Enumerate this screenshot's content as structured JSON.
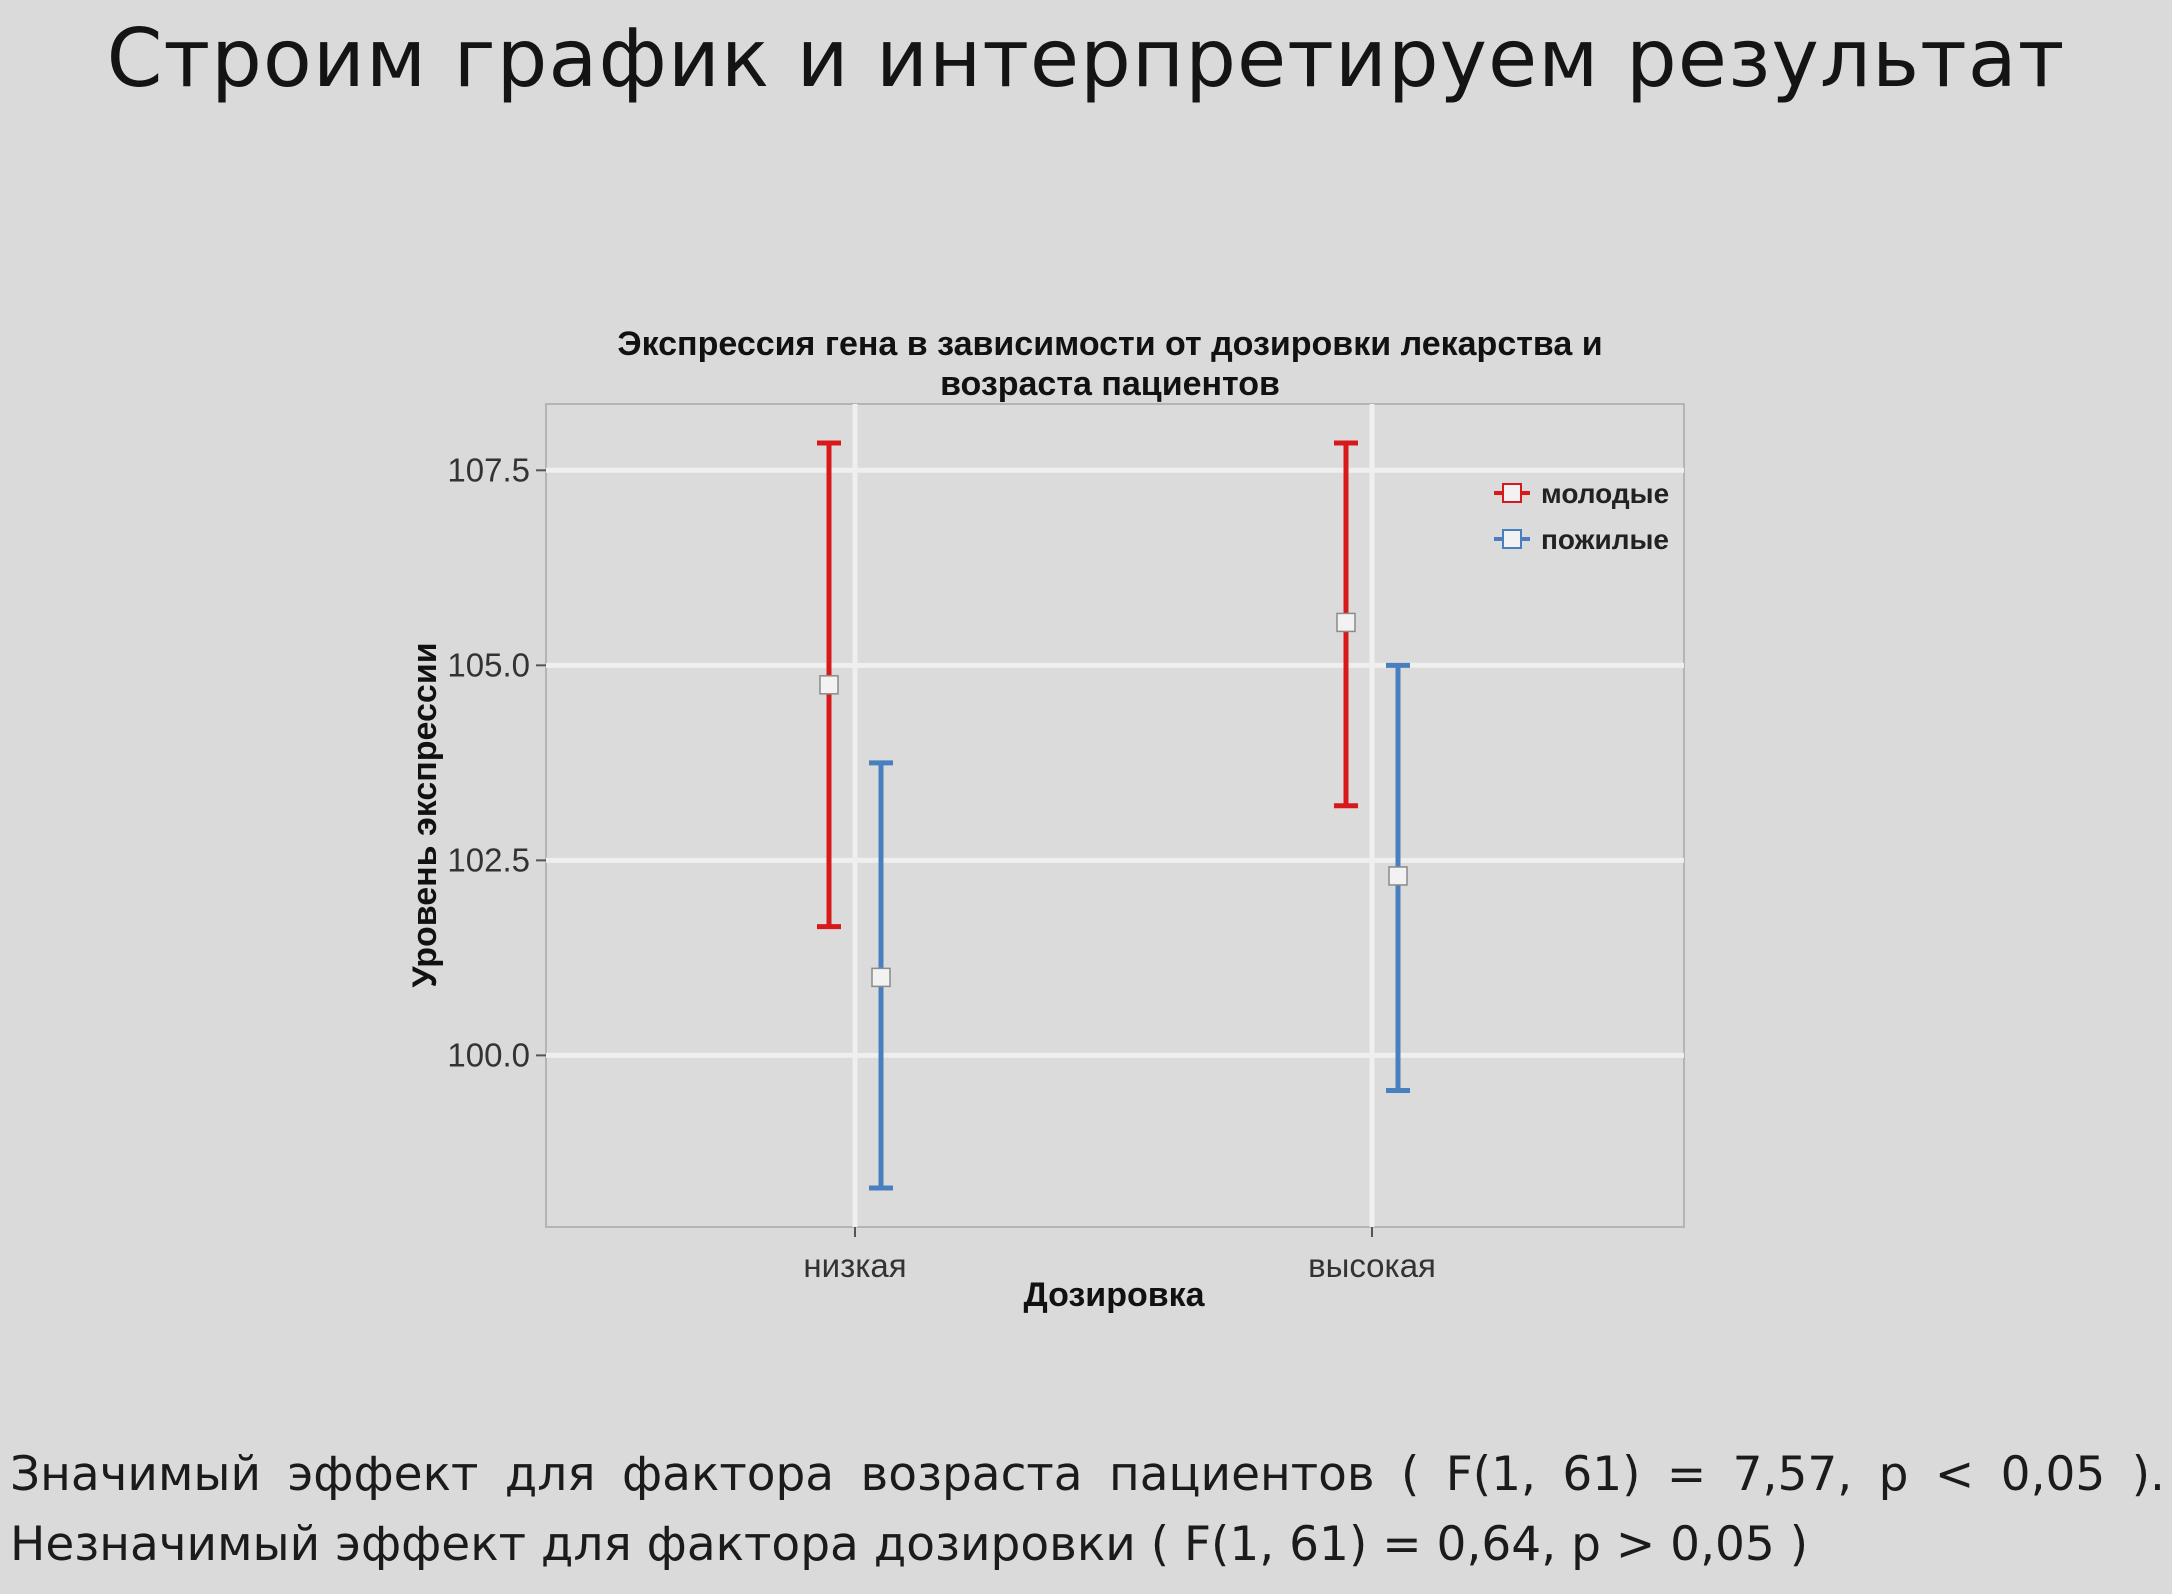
{
  "slide": {
    "title": "Строим график и интерпретируем результат",
    "conclusion_line1": "Значимый эффект  для  фактора возраста  пациентов ( F(1, 61) = 7,57, p < 0,05 ).",
    "conclusion_line2": "Незначимый эффект для фактора дозировки ( F(1, 61) = 0,64, p > 0,05 )"
  },
  "chart_data": {
    "type": "scatter",
    "title_line1": "Экспрессия гена в зависимости от дозировки лекарства и",
    "title_line2": "возраста пациентов",
    "xlabel": "Дозировка",
    "ylabel": "Уровень экспрессии",
    "categories": [
      "низкая",
      "высокая"
    ],
    "ylim": [
      97.8,
      108.35
    ],
    "yticks": [
      100.0,
      102.5,
      105.0,
      107.5
    ],
    "ytick_labels": [
      "100.0",
      "102.5",
      "105.0",
      "107.5"
    ],
    "grid": true,
    "legend_position": "top-right",
    "series": [
      {
        "name": "молодые",
        "color": "#d7191c",
        "mean": [
          104.75,
          105.55
        ],
        "lower": [
          101.65,
          103.2
        ],
        "upper": [
          107.85,
          107.85
        ]
      },
      {
        "name": "пожилые",
        "color": "#4a7fbf",
        "mean": [
          101.0,
          102.3
        ],
        "lower": [
          98.3,
          99.55
        ],
        "upper": [
          103.75,
          105.0
        ]
      }
    ]
  }
}
